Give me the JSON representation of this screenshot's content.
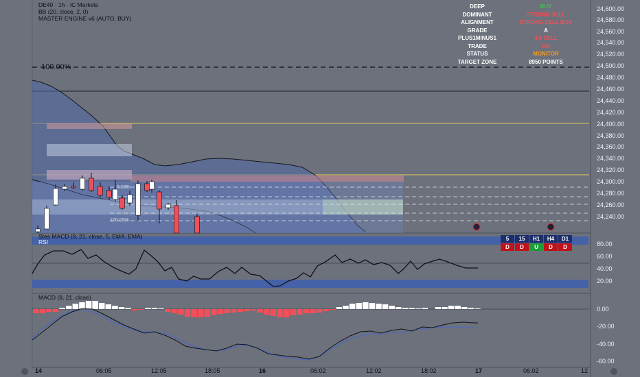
{
  "header": {
    "symbol_line": "DE40 · 1h · IC Markets",
    "bb_line": "BB (20, close, 2, 0)",
    "engine_line": "MASTER ENGINE v6 (AUTO, BUY)"
  },
  "signal_table": [
    {
      "key": "DEEP",
      "value": "BUY",
      "color": "#3fbf52"
    },
    {
      "key": "DOMINANT",
      "value": "STRONG SELL",
      "color": "#f0505a"
    },
    {
      "key": "ALIGNMENT",
      "value": "STRONG SELL BOS",
      "color": "#f0505a"
    },
    {
      "key": "GRADE",
      "value": "A",
      "color": "#ffffff"
    },
    {
      "key": "PLUS1MINUS1",
      "value": "4/5 SELL",
      "color": "#f0505a"
    },
    {
      "key": "TRADE",
      "value": "ON",
      "color": "#f0505a"
    },
    {
      "key": "STATUS",
      "value": "MONITOR",
      "color": "#f59a23"
    },
    {
      "key": "TARGET ZONE",
      "value": "8950 POINTS",
      "color": "#ffffff"
    }
  ],
  "hundred_label": "100.00%",
  "fib_labels": [
    "0.00%",
    "100.00%"
  ],
  "price_axis": [
    "24,600.00",
    "24,580.00",
    "24,560.00",
    "24,540.00",
    "24,520.00",
    "24,500.00",
    "24,480.00",
    "24,460.00",
    "24,440.00",
    "24,420.00",
    "24,400.00",
    "24,380.00",
    "24,360.00",
    "24,340.00",
    "24,320.00",
    "24,300.00",
    "24,280.00",
    "24,260.00",
    "24,240.00"
  ],
  "rsi_pane": {
    "title1": "Stes MACD (8, 21, close, 5, EMA, EMA)",
    "title2": "RSI",
    "axis": [
      "80.00",
      "60.00",
      "40.00",
      "20.00"
    ]
  },
  "macd_pane": {
    "title": "MACD (8, 21, close)",
    "axis": [
      "0.00",
      "-20.00",
      "-40.00",
      "-60.00"
    ]
  },
  "timeframes": [
    {
      "tf": "5",
      "dir": "D"
    },
    {
      "tf": "15",
      "dir": "D"
    },
    {
      "tf": "H1",
      "dir": "U"
    },
    {
      "tf": "H4",
      "dir": "D"
    },
    {
      "tf": "D1",
      "dir": "D"
    }
  ],
  "time_axis": [
    "14",
    "06:05",
    "12:05",
    "18:05",
    "16",
    "06:02",
    "12:02",
    "18:02",
    "17",
    "06:02",
    "12"
  ],
  "colors": {
    "bull": "#ffffff",
    "bear": "#f0505a",
    "up_cell": "#1e9d3a",
    "down_cell": "#c0121b",
    "tf_head": "#1d2f6a"
  }
}
